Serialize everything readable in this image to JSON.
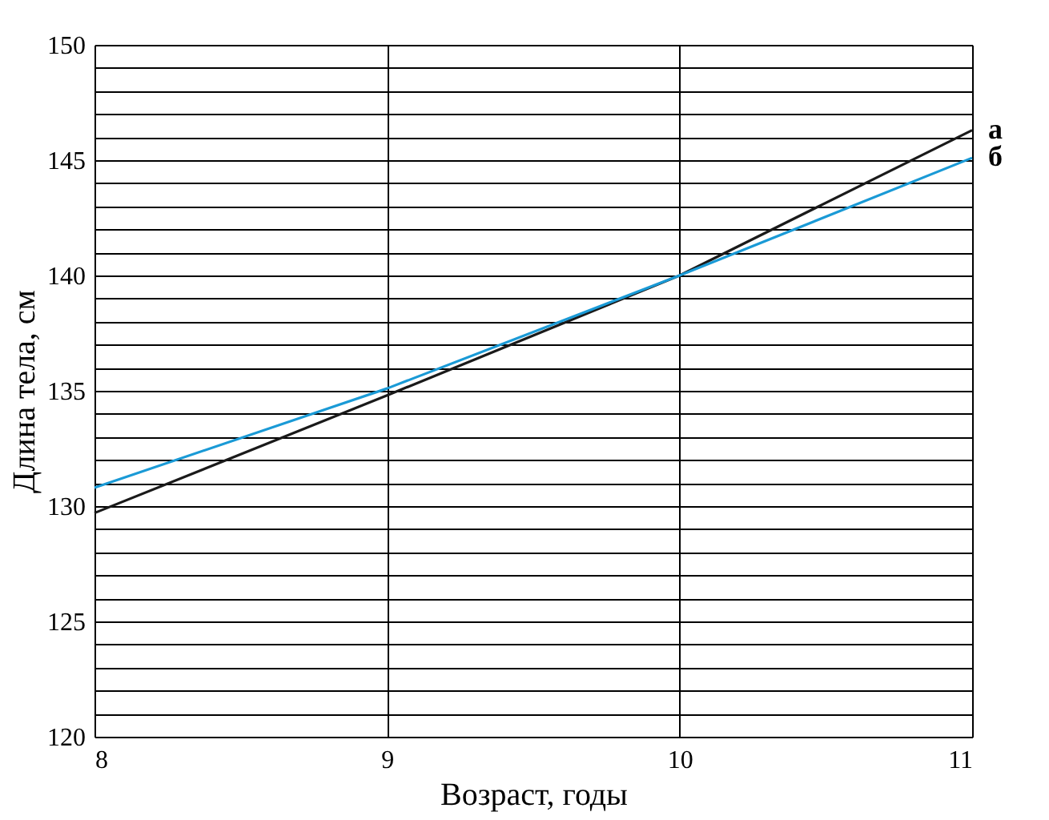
{
  "chart_data": {
    "type": "line",
    "xlabel": "Возраст, годы",
    "ylabel": "Длина тела, см",
    "x": [
      8,
      9,
      10,
      11
    ],
    "series": [
      {
        "name": "а",
        "color": "#1a1a1a",
        "values": [
          129.7,
          134.8,
          140,
          146.3
        ]
      },
      {
        "name": "б",
        "color": "#1a9ad6",
        "values": [
          130.8,
          135.1,
          140,
          145.1
        ]
      }
    ],
    "xlim": [
      8,
      11
    ],
    "xticks": [
      8,
      9,
      10,
      11
    ],
    "ylim": [
      120,
      150
    ],
    "yticks": [
      120,
      {
        "value": 121,
        "label": null
      },
      {
        "value": 122,
        "label": null
      },
      {
        "value": 123,
        "label": null
      },
      {
        "value": 124,
        "label": null
      },
      125,
      {
        "value": 126,
        "label": null
      },
      {
        "value": 127,
        "label": null
      },
      {
        "value": 128,
        "label": null
      },
      {
        "value": 129,
        "label": null
      },
      130,
      {
        "value": 131,
        "label": null
      },
      {
        "value": 132,
        "label": null
      },
      {
        "value": 133,
        "label": null
      },
      {
        "value": 134,
        "label": null
      },
      135,
      {
        "value": 136,
        "label": null
      },
      {
        "value": 137,
        "label": null
      },
      {
        "value": 138,
        "label": null
      },
      {
        "value": 139,
        "label": null
      },
      140,
      {
        "value": 141,
        "label": null
      },
      {
        "value": 142,
        "label": null
      },
      {
        "value": 143,
        "label": null
      },
      {
        "value": 144,
        "label": null
      },
      145,
      {
        "value": 146,
        "label": null
      },
      {
        "value": 147,
        "label": null
      },
      {
        "value": 148,
        "label": null
      },
      {
        "value": 149,
        "label": null
      },
      150
    ],
    "grid": true,
    "legend": false,
    "marker": "none",
    "line_style": "solid"
  }
}
